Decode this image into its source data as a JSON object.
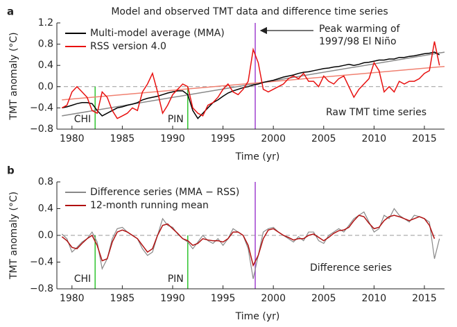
{
  "chart_data": [
    {
      "type": "line",
      "panel_label": "a",
      "title": "Model and observed TMT data and difference time series",
      "x_label": "Time (yr)",
      "y_label": "TMT anomaly (°C)",
      "x": [
        1979,
        1979.5,
        1980,
        1980.5,
        1981,
        1981.5,
        1982,
        1982.5,
        1983,
        1983.5,
        1984,
        1984.5,
        1985,
        1985.5,
        1986,
        1986.5,
        1987,
        1987.5,
        1988,
        1988.5,
        1989,
        1989.5,
        1990,
        1990.5,
        1991,
        1991.5,
        1992,
        1992.5,
        1993,
        1993.5,
        1994,
        1994.5,
        1995,
        1995.5,
        1996,
        1996.5,
        1997,
        1997.5,
        1998,
        1998.5,
        1999,
        1999.5,
        2000,
        2000.5,
        2001,
        2001.5,
        2002,
        2002.5,
        2003,
        2003.5,
        2004,
        2004.5,
        2005,
        2005.5,
        2006,
        2006.5,
        2007,
        2007.5,
        2008,
        2008.5,
        2009,
        2009.5,
        2010,
        2010.5,
        2011,
        2011.5,
        2012,
        2012.5,
        2013,
        2013.5,
        2014,
        2014.5,
        2015,
        2015.5,
        2016,
        2016.5
      ],
      "series": [
        {
          "name": "Multi-model average (MMA)",
          "color": "#000000",
          "values": [
            -0.4,
            -0.38,
            -0.35,
            -0.32,
            -0.3,
            -0.3,
            -0.32,
            -0.45,
            -0.55,
            -0.5,
            -0.45,
            -0.4,
            -0.38,
            -0.35,
            -0.33,
            -0.3,
            -0.25,
            -0.22,
            -0.2,
            -0.18,
            -0.15,
            -0.12,
            -0.1,
            -0.08,
            -0.08,
            -0.15,
            -0.45,
            -0.6,
            -0.5,
            -0.4,
            -0.3,
            -0.25,
            -0.18,
            -0.12,
            -0.08,
            -0.05,
            -0.02,
            0.0,
            0.03,
            0.05,
            0.08,
            0.1,
            0.12,
            0.15,
            0.18,
            0.2,
            0.22,
            0.25,
            0.27,
            0.28,
            0.3,
            0.32,
            0.34,
            0.35,
            0.37,
            0.38,
            0.4,
            0.42,
            0.4,
            0.42,
            0.45,
            0.46,
            0.48,
            0.5,
            0.5,
            0.52,
            0.52,
            0.55,
            0.55,
            0.57,
            0.58,
            0.6,
            0.62,
            0.63,
            0.65,
            0.6
          ]
        },
        {
          "name": "RSS version 4.0",
          "color": "#e8100f",
          "values": [
            -0.4,
            -0.35,
            -0.1,
            0.0,
            -0.1,
            -0.2,
            -0.45,
            -0.5,
            -0.1,
            -0.2,
            -0.45,
            -0.6,
            -0.55,
            -0.5,
            -0.4,
            -0.45,
            -0.1,
            0.05,
            0.25,
            -0.1,
            -0.5,
            -0.35,
            -0.15,
            -0.05,
            0.05,
            0.0,
            -0.4,
            -0.5,
            -0.55,
            -0.35,
            -0.3,
            -0.2,
            -0.05,
            0.05,
            -0.1,
            -0.15,
            -0.05,
            0.1,
            0.7,
            0.45,
            -0.05,
            -0.1,
            -0.05,
            0.0,
            0.05,
            0.15,
            0.2,
            0.15,
            0.25,
            0.1,
            0.1,
            0.0,
            0.2,
            0.1,
            0.05,
            0.15,
            0.2,
            0.0,
            -0.2,
            -0.05,
            0.05,
            0.15,
            0.45,
            0.3,
            -0.1,
            0.0,
            -0.1,
            0.1,
            0.05,
            0.1,
            0.1,
            0.15,
            0.25,
            0.3,
            0.85,
            0.4
          ]
        }
      ],
      "trend_lines": [
        {
          "color": "#888888",
          "x": [
            1979,
            2017
          ],
          "values": [
            -0.55,
            0.65
          ]
        },
        {
          "color": "#f08070",
          "x": [
            1979,
            2017
          ],
          "values": [
            -0.25,
            0.38
          ]
        }
      ],
      "events": [
        {
          "x": 1982.3,
          "label": "CHI",
          "color": "#2fc42f"
        },
        {
          "x": 1991.5,
          "label": "PIN",
          "color": "#2fc42f"
        },
        {
          "x": 1998.2,
          "color": "#a040d0"
        }
      ],
      "annotations": [
        [
          "Peak warming of",
          "1997/98 El Niño"
        ],
        [
          "Raw TMT time series"
        ]
      ],
      "reference_line": 0,
      "xlim": [
        1978.5,
        2017
      ],
      "xticks": [
        1980,
        1985,
        1990,
        1995,
        2000,
        2005,
        2010,
        2015
      ],
      "ylim": [
        -0.8,
        1.2
      ],
      "yticks": [
        {
          "value": -0.8,
          "label": "−0.8"
        },
        {
          "value": -0.4,
          "label": "−0.4"
        },
        {
          "value": 0,
          "label": "0.0"
        },
        0.4,
        0.8,
        1.2
      ],
      "legend": "upper left"
    },
    {
      "type": "line",
      "panel_label": "b",
      "x_label": "Time (yr)",
      "y_label": "TMT anomaly (°C)",
      "x": [
        1979,
        1979.5,
        1980,
        1980.5,
        1981,
        1981.5,
        1982,
        1982.5,
        1983,
        1983.5,
        1984,
        1984.5,
        1985,
        1985.5,
        1986,
        1986.5,
        1987,
        1987.5,
        1988,
        1988.5,
        1989,
        1989.5,
        1990,
        1990.5,
        1991,
        1991.5,
        1992,
        1992.5,
        1993,
        1993.5,
        1994,
        1994.5,
        1995,
        1995.5,
        1996,
        1996.5,
        1997,
        1997.5,
        1998,
        1998.5,
        1999,
        1999.5,
        2000,
        2000.5,
        2001,
        2001.5,
        2002,
        2002.5,
        2003,
        2003.5,
        2004,
        2004.5,
        2005,
        2005.5,
        2006,
        2006.5,
        2007,
        2007.5,
        2008,
        2008.5,
        2009,
        2009.5,
        2010,
        2010.5,
        2011,
        2011.5,
        2012,
        2012.5,
        2013,
        2013.5,
        2014,
        2014.5,
        2015,
        2015.5,
        2016,
        2016.5
      ],
      "series": [
        {
          "name": "Difference series (MMA − RSS)",
          "color": "#888888",
          "values": [
            0.02,
            -0.05,
            -0.25,
            -0.18,
            -0.1,
            -0.05,
            0.05,
            -0.1,
            -0.5,
            -0.35,
            -0.05,
            0.1,
            0.12,
            0.05,
            0.0,
            -0.05,
            -0.2,
            -0.3,
            -0.25,
            0.0,
            0.25,
            0.15,
            0.12,
            0.02,
            -0.05,
            -0.1,
            -0.2,
            -0.1,
            0.0,
            -0.08,
            -0.12,
            -0.05,
            -0.15,
            -0.05,
            0.1,
            0.05,
            0.0,
            -0.2,
            -0.65,
            -0.3,
            0.05,
            0.1,
            0.12,
            0.05,
            0.0,
            -0.05,
            -0.1,
            -0.02,
            -0.08,
            0.05,
            0.05,
            -0.08,
            -0.12,
            0.0,
            0.05,
            0.1,
            0.05,
            0.15,
            0.25,
            0.3,
            0.35,
            0.2,
            0.05,
            0.1,
            0.3,
            0.25,
            0.4,
            0.3,
            0.25,
            0.2,
            0.3,
            0.28,
            0.25,
            0.2,
            -0.35,
            -0.05
          ]
        },
        {
          "name": "12-month running mean",
          "color": "#b01010",
          "values": [
            -0.02,
            -0.08,
            -0.18,
            -0.2,
            -0.12,
            -0.05,
            0.0,
            -0.15,
            -0.38,
            -0.35,
            -0.1,
            0.05,
            0.08,
            0.05,
            0.0,
            -0.05,
            -0.15,
            -0.25,
            -0.2,
            0.0,
            0.15,
            0.17,
            0.1,
            0.03,
            -0.05,
            -0.08,
            -0.15,
            -0.12,
            -0.05,
            -0.07,
            -0.08,
            -0.08,
            -0.1,
            -0.05,
            0.05,
            0.05,
            0.0,
            -0.15,
            -0.45,
            -0.3,
            -0.05,
            0.08,
            0.1,
            0.05,
            0.0,
            -0.03,
            -0.07,
            -0.05,
            -0.05,
            0.0,
            0.02,
            -0.03,
            -0.08,
            -0.03,
            0.03,
            0.07,
            0.08,
            0.12,
            0.22,
            0.3,
            0.28,
            0.18,
            0.1,
            0.12,
            0.22,
            0.28,
            0.3,
            0.28,
            0.25,
            0.22,
            0.25,
            0.28,
            0.25,
            0.15,
            -0.05,
            null
          ]
        }
      ],
      "events": [
        {
          "x": 1982.3,
          "label": "CHI",
          "color": "#2fc42f"
        },
        {
          "x": 1991.5,
          "label": "PIN",
          "color": "#2fc42f"
        },
        {
          "x": 1998.2,
          "color": "#a040d0"
        }
      ],
      "annotations": [
        [
          "Difference series"
        ]
      ],
      "reference_line": 0,
      "xlim": [
        1978.5,
        2017
      ],
      "xticks": [
        1980,
        1985,
        1990,
        1995,
        2000,
        2005,
        2010,
        2015
      ],
      "ylim": [
        -0.8,
        0.8
      ],
      "yticks": [
        {
          "value": -0.8,
          "label": "−0.8"
        },
        {
          "value": -0.4,
          "label": "−0.4"
        },
        {
          "value": 0,
          "label": "0.0"
        },
        0.4,
        0.8
      ],
      "legend": "upper left"
    }
  ]
}
